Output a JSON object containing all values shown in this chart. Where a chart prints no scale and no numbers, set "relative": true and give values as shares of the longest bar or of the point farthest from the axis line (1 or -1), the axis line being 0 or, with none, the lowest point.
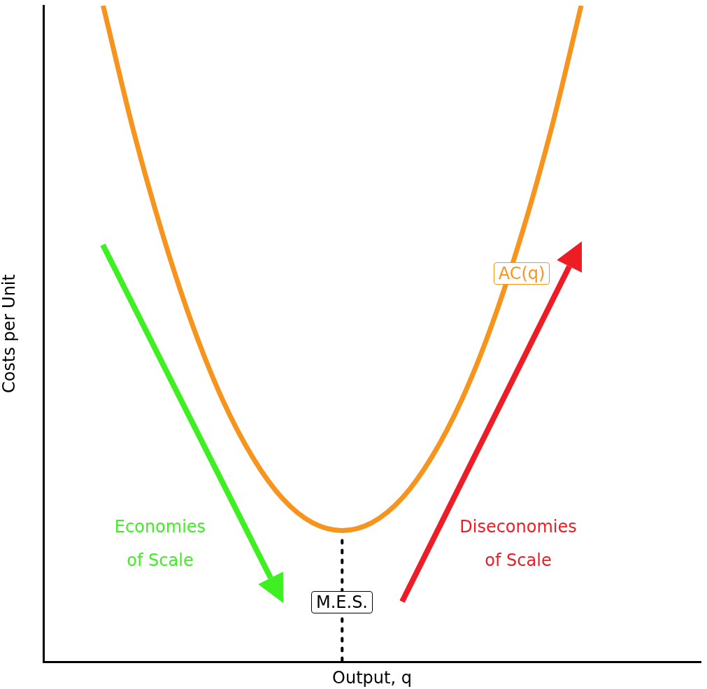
{
  "chart_data": {
    "type": "line",
    "relative": true,
    "xlabel": "Output, q",
    "ylabel": "Costs per Unit",
    "categories": [
      null,
      null,
      null,
      null,
      null,
      null,
      null,
      null,
      null,
      null,
      null,
      null,
      null,
      null,
      null,
      null,
      null,
      null,
      null,
      null,
      null,
      null,
      null
    ],
    "series": [
      {
        "color": "#f7941d",
        "values": [
          null,
          null,
          1,
          0.812,
          0.65,
          0.512,
          0.399,
          0.312,
          0.249,
          0.212,
          0.2,
          0.212,
          0.249,
          0.312,
          0.399,
          0.512,
          0.65,
          0.812,
          1,
          null,
          null,
          null,
          null
        ]
      }
    ],
    "marker": "none",
    "grid": false,
    "legend": false,
    "annotations": [
      "AC(q)",
      "Economies of Scale",
      "Diseconomies of Scale",
      "M.E.S."
    ]
  }
}
